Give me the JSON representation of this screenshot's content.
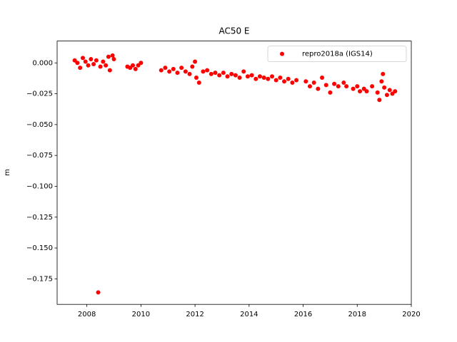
{
  "chart_data": {
    "type": "scatter",
    "title": "AC50 E",
    "ylabel": "m",
    "xlim": [
      2006.9,
      2020.0
    ],
    "xticks": [
      2008,
      2010,
      2012,
      2014,
      2016,
      2018,
      2020
    ],
    "ylim": [
      -0.1957,
      0.0177
    ],
    "yticks": [
      {
        "value": 0.0,
        "label": "0.000"
      },
      {
        "value": -0.025,
        "label": "−0.025"
      },
      {
        "value": -0.05,
        "label": "−0.050"
      },
      {
        "value": -0.075,
        "label": "−0.075"
      },
      {
        "value": -0.1,
        "label": "−0.100"
      },
      {
        "value": -0.125,
        "label": "−0.125"
      },
      {
        "value": -0.15,
        "label": "−0.150"
      },
      {
        "value": -0.175,
        "label": "−0.175"
      }
    ],
    "grid": false,
    "legend": "upper right",
    "series": [
      {
        "name": "repro2018a (IGS14)",
        "color": "#ff0000",
        "x": [
          2007.55,
          2007.65,
          2007.75,
          2007.85,
          2007.95,
          2008.05,
          2008.15,
          2008.25,
          2008.35,
          2008.42,
          2008.5,
          2008.6,
          2008.7,
          2008.8,
          2008.85,
          2008.95,
          2009.0,
          2009.5,
          2009.6,
          2009.7,
          2009.8,
          2009.9,
          2010.0,
          2010.75,
          2010.9,
          2011.05,
          2011.2,
          2011.35,
          2011.5,
          2011.65,
          2011.8,
          2011.9,
          2012.0,
          2012.05,
          2012.15,
          2012.3,
          2012.45,
          2012.6,
          2012.75,
          2012.9,
          2013.05,
          2013.2,
          2013.35,
          2013.5,
          2013.65,
          2013.8,
          2013.95,
          2014.1,
          2014.25,
          2014.4,
          2014.55,
          2014.7,
          2014.85,
          2015.0,
          2015.15,
          2015.3,
          2015.45,
          2015.6,
          2015.75,
          2016.1,
          2016.25,
          2016.4,
          2016.55,
          2016.7,
          2016.85,
          2017.0,
          2017.15,
          2017.3,
          2017.5,
          2017.6,
          2017.85,
          2018.0,
          2018.1,
          2018.25,
          2018.35,
          2018.55,
          2018.75,
          2018.82,
          2018.9,
          2018.95,
          2019.0,
          2019.1,
          2019.2,
          2019.3,
          2019.4
        ],
        "values": [
          0.002,
          0.0,
          -0.004,
          0.004,
          0.001,
          -0.002,
          0.003,
          -0.001,
          0.002,
          -0.186,
          -0.003,
          0.001,
          -0.002,
          0.005,
          -0.006,
          0.006,
          0.003,
          -0.003,
          -0.004,
          -0.002,
          -0.005,
          -0.002,
          0.0,
          -0.006,
          -0.004,
          -0.007,
          -0.005,
          -0.008,
          -0.004,
          -0.007,
          -0.009,
          -0.003,
          0.001,
          -0.012,
          -0.016,
          -0.007,
          -0.006,
          -0.009,
          -0.008,
          -0.01,
          -0.008,
          -0.011,
          -0.009,
          -0.01,
          -0.012,
          -0.007,
          -0.011,
          -0.01,
          -0.013,
          -0.011,
          -0.012,
          -0.013,
          -0.011,
          -0.014,
          -0.012,
          -0.015,
          -0.013,
          -0.016,
          -0.014,
          -0.015,
          -0.019,
          -0.016,
          -0.021,
          -0.012,
          -0.018,
          -0.024,
          -0.017,
          -0.019,
          -0.016,
          -0.019,
          -0.021,
          -0.019,
          -0.023,
          -0.021,
          -0.023,
          -0.019,
          -0.024,
          -0.03,
          -0.015,
          -0.009,
          -0.02,
          -0.026,
          -0.022,
          -0.025,
          -0.023
        ]
      }
    ]
  }
}
